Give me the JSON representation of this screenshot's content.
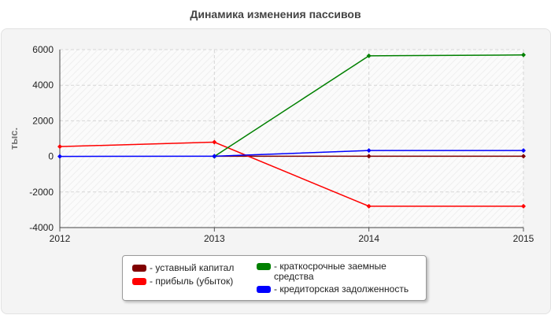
{
  "chart_data": {
    "type": "line",
    "title": "Динамика изменения пассивов",
    "ylabel": "тыс.",
    "xlabel": "",
    "categories": [
      "2012",
      "2013",
      "2014",
      "2015"
    ],
    "ylim": [
      -4000,
      6000
    ],
    "yticks": [
      6000,
      4000,
      2000,
      0,
      -2000,
      -4000
    ],
    "grid": true,
    "legend_position": "bottom-center",
    "series": [
      {
        "name": "- уставный капитал",
        "color": "#800000",
        "values": [
          null,
          10,
          10,
          10
        ]
      },
      {
        "name": "- прибыль (убыток)",
        "color": "#ff0000",
        "values": [
          550,
          800,
          -2800,
          -2800
        ]
      },
      {
        "name": "- краткосрочные заемные средства",
        "color": "#008000",
        "values": [
          null,
          0,
          5650,
          5700
        ]
      },
      {
        "name": "- кредиторская задолженность",
        "color": "#0000ff",
        "values": [
          0,
          10,
          330,
          330
        ]
      }
    ]
  }
}
